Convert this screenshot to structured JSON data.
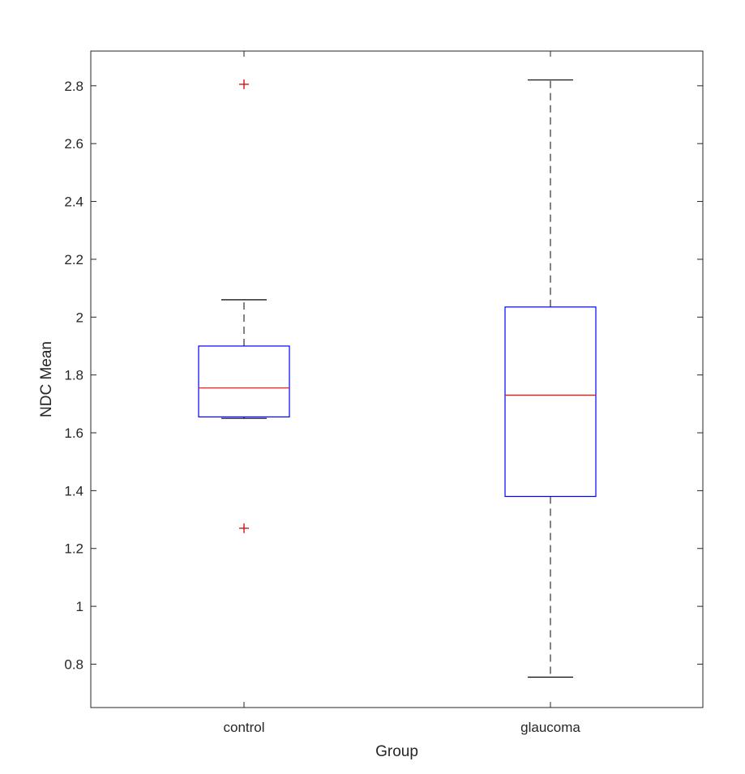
{
  "chart_data": {
    "type": "boxplot",
    "title": "",
    "xlabel": "Group",
    "ylabel": "NDC Mean",
    "ylim": [
      0.65,
      2.92
    ],
    "yticks": [
      0.8,
      1,
      1.2,
      1.4,
      1.6,
      1.8,
      2,
      2.2,
      2.4,
      2.6,
      2.8
    ],
    "ytick_labels": [
      "0.8",
      "1",
      "1.2",
      "1.4",
      "1.6",
      "1.8",
      "2",
      "2.2",
      "2.4",
      "2.6",
      "2.8"
    ],
    "categories": [
      "control",
      "glaucoma"
    ],
    "boxes": [
      {
        "name": "control",
        "whisker_low": 1.65,
        "q1": 1.655,
        "median": 1.755,
        "q3": 1.9,
        "whisker_high": 2.06,
        "outliers": [
          2.805,
          1.27
        ]
      },
      {
        "name": "glaucoma",
        "whisker_low": 0.755,
        "q1": 1.38,
        "median": 1.73,
        "q3": 2.035,
        "whisker_high": 2.82,
        "outliers": []
      }
    ],
    "colors": {
      "box": "#0000ff",
      "median": "#ff0000",
      "whisker": "#404040",
      "outlier": "#cc0000",
      "axis": "#262626"
    }
  }
}
